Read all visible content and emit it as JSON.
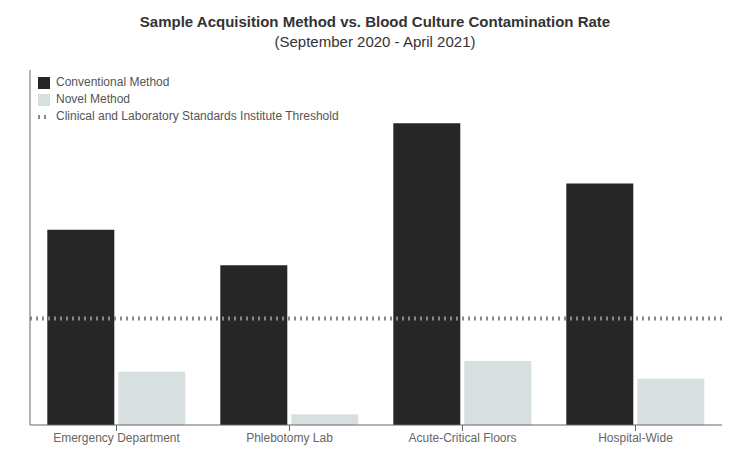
{
  "chart_data": {
    "type": "bar",
    "title": "Sample Acquisition Method vs. Blood Culture Contamination Rate",
    "subtitle": "(September 2020 - April 2021)",
    "categories": [
      "Emergency Department",
      "Phlebotomy Lab",
      "Acute-Critical Floors",
      "Hospital-Wide"
    ],
    "series": [
      {
        "name": "Conventional Method",
        "color": "#262626",
        "values": [
          5.5,
          4.5,
          8.5,
          6.8
        ]
      },
      {
        "name": "Novel Method",
        "color": "#d8dfe0",
        "values": [
          1.5,
          0.3,
          1.8,
          1.3
        ]
      }
    ],
    "threshold": {
      "name": "Clinical and Laboratory Standards Institute Threshold",
      "value": 3.0,
      "color": "#888888",
      "line_style": "dotted"
    },
    "ylim": [
      0,
      10
    ],
    "legend": "upper left",
    "grid": false,
    "tick_labels": "x"
  }
}
